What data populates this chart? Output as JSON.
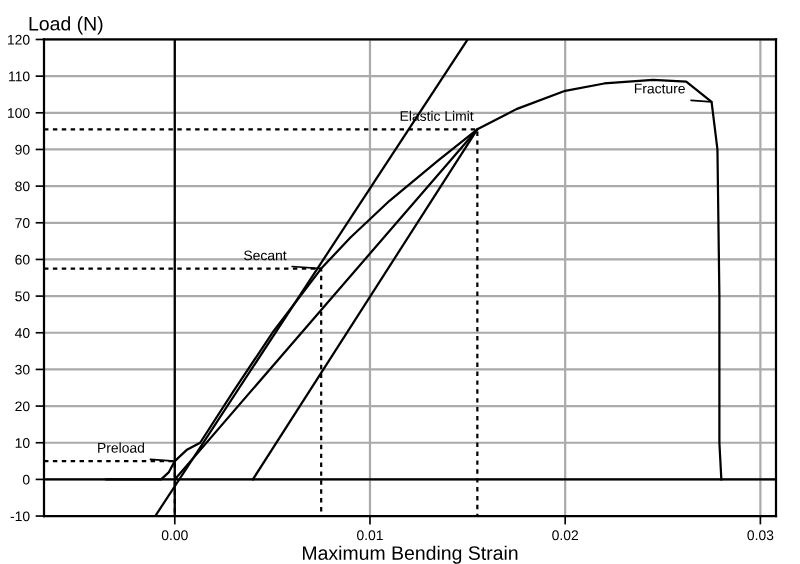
{
  "chart_data": {
    "type": "line",
    "xlabel": "Maximum Bending Strain",
    "ylabel": "Load (N)",
    "xlim": [
      -0.0067,
      0.0308
    ],
    "ylim": [
      -10,
      120
    ],
    "xticks": [
      {
        "value": 0,
        "label": "0.00"
      },
      {
        "value": 0.01,
        "label": "0.01"
      },
      {
        "value": 0.02,
        "label": "0.02"
      },
      {
        "value": 0.03,
        "label": "0.03"
      }
    ],
    "yticks": [
      -10,
      0,
      10,
      20,
      30,
      40,
      50,
      60,
      70,
      80,
      90,
      100,
      110,
      120
    ],
    "grid": true,
    "legend": false,
    "series": [
      {
        "color": "#000000",
        "line_style": "solid",
        "x": [
          -0.0035,
          -0.0007,
          -0.0003,
          0.0,
          0.0006,
          0.0013,
          0.003,
          0.005,
          0.0075,
          0.009,
          0.011,
          0.0135,
          0.0155,
          0.0175,
          0.02,
          0.022,
          0.0245,
          0.0262,
          0.0275,
          0.0278,
          0.0279,
          0.0279,
          0.028
        ],
        "values": [
          0,
          0,
          2,
          5,
          8,
          10,
          24,
          40,
          57.5,
          66,
          76,
          87,
          95.5,
          101,
          106,
          108,
          109,
          108.5,
          103,
          90,
          50,
          10,
          0
        ]
      },
      {
        "color": "#000000",
        "line_style": "solid",
        "x": [
          -0.001,
          0.015
        ],
        "values": [
          -10,
          120
        ]
      },
      {
        "color": "#000000",
        "line_style": "solid",
        "x": [
          0.004,
          0.0155
        ],
        "values": [
          0,
          95.5
        ]
      },
      {
        "color": "#000000",
        "line_style": "solid",
        "x": [
          0.0,
          0.0155
        ],
        "values": [
          0,
          95.5
        ]
      },
      {
        "color": "#000000",
        "line_style": "dotted",
        "x": [
          -0.0067,
          0.0,
          0.0
        ],
        "values": [
          5,
          5,
          -10
        ]
      },
      {
        "color": "#000000",
        "line_style": "dotted",
        "x": [
          -0.0067,
          0.0075,
          0.0075
        ],
        "values": [
          57.5,
          57.5,
          -10
        ]
      },
      {
        "color": "#000000",
        "line_style": "dotted",
        "x": [
          -0.0067,
          0.0155,
          0.0155
        ],
        "values": [
          95.5,
          95.5,
          -10
        ]
      },
      {
        "color": "#000000",
        "line_style": "solid",
        "x": [
          0,
          0
        ],
        "values": [
          -10,
          120
        ]
      },
      {
        "color": "#000000",
        "line_style": "solid",
        "x": [
          -0.0067,
          0.0308
        ],
        "values": [
          0,
          0
        ]
      }
    ],
    "annotations": [
      {
        "text": "Preload",
        "x": 0.0,
        "y": 5
      },
      {
        "text": "Secant",
        "x": 0.0075,
        "y": 57.5
      },
      {
        "text": "Elastic Limit",
        "x": 0.0155,
        "y": 95.5
      },
      {
        "text": "Fracture",
        "x": 0.0275,
        "y": 103
      }
    ]
  }
}
